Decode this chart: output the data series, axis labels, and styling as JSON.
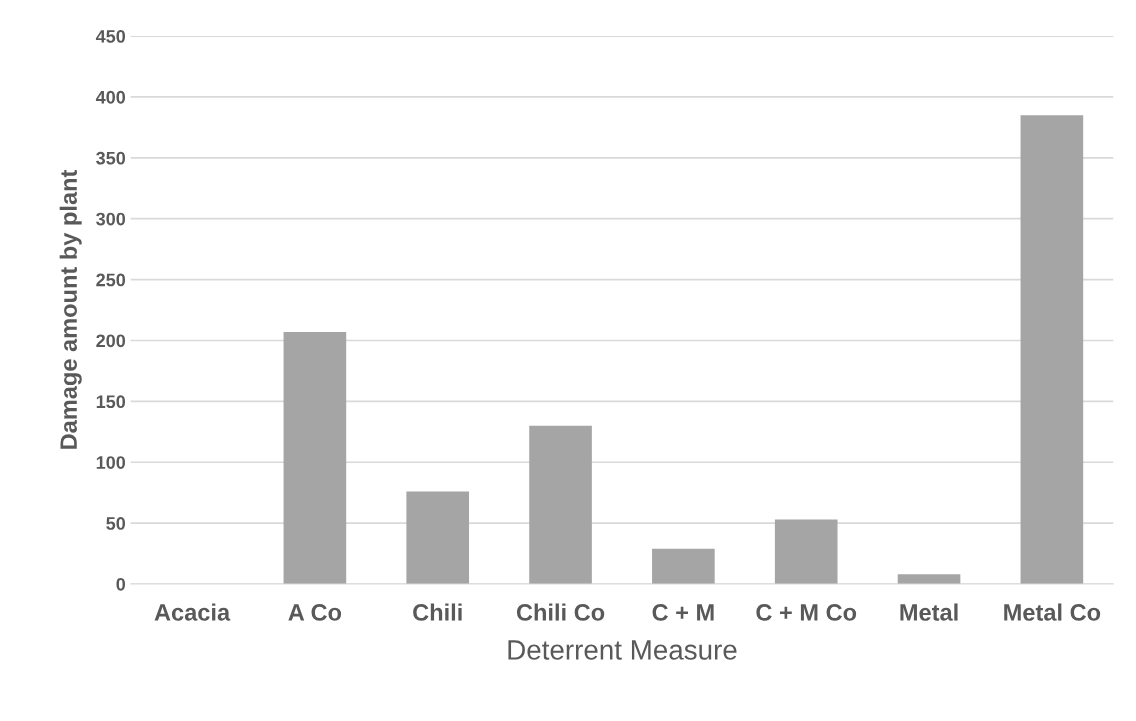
{
  "chart_data": {
    "type": "bar",
    "xlabel": "Deterrent Measure",
    "ylabel": "Damage amount by plant",
    "categories": [
      "Acacia",
      "A Co",
      "Chili",
      "Chili Co",
      "C + M",
      "C + M Co",
      "Metal",
      "Metal Co"
    ],
    "values": [
      0,
      207,
      76,
      130,
      29,
      53,
      8,
      385
    ],
    "color": "#a5a5a5",
    "ylim": [
      0,
      450
    ],
    "yticks": [
      0,
      50,
      100,
      150,
      200,
      250,
      300,
      350,
      400,
      450
    ],
    "grid": "y"
  }
}
